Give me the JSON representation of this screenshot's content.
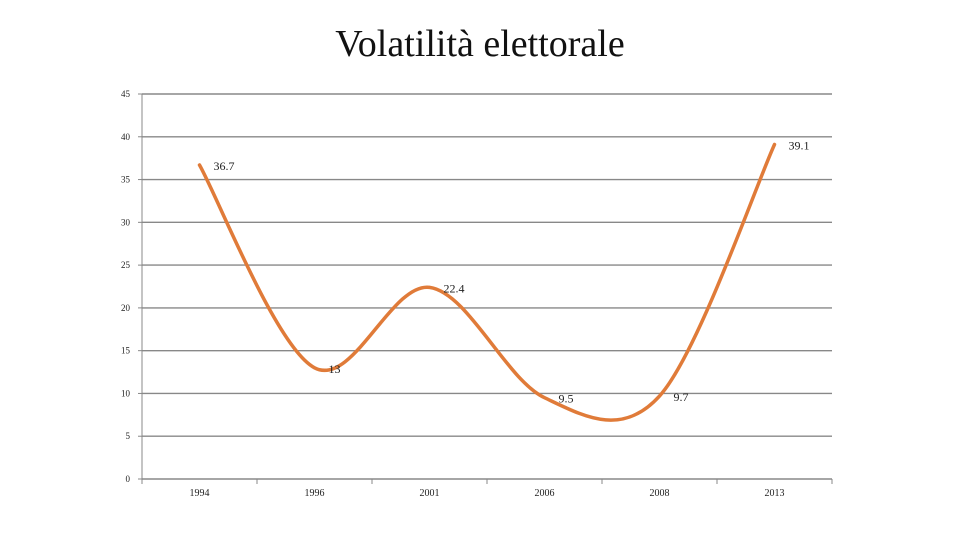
{
  "chart_data": {
    "type": "line",
    "title": "Volatilità elettorale",
    "xlabel": "",
    "ylabel": "",
    "categories": [
      "1994",
      "1996",
      "2001",
      "2006",
      "2008",
      "2013"
    ],
    "series": [
      {
        "values": [
          36.7,
          13,
          22.4,
          9.5,
          9.7,
          39.1
        ],
        "data_labels": [
          "36.7",
          "13",
          "22.4",
          "9.5",
          "9.7",
          "39.1"
        ]
      }
    ],
    "ylim": [
      0,
      45
    ],
    "yticks": [
      "0",
      "5",
      "10",
      "15",
      "20",
      "25",
      "30",
      "35",
      "40",
      "45"
    ],
    "grid": true,
    "legend": "none",
    "smooth": true,
    "colors": {
      "line": "#E07B39",
      "grid": "#888888",
      "axis": "#888888"
    }
  }
}
